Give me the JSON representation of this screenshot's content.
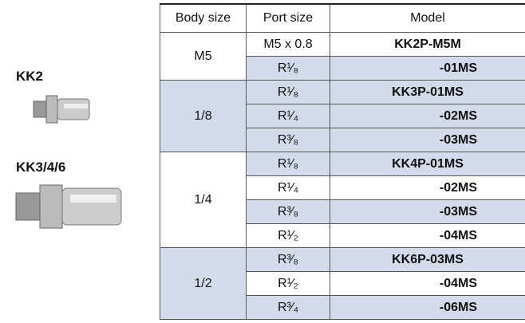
{
  "labels": [
    "KK2",
    "KK3/4/6"
  ],
  "table": {
    "header": [
      "Body size",
      "Port size",
      "Model"
    ],
    "groups": [
      {
        "body": "M5",
        "rows": [
          [
            "M5 x 0.8",
            "KK2P-M5M"
          ],
          [
            "R¹⁄₈",
            "-01MS"
          ]
        ]
      },
      {
        "body": "1/8",
        "rows": [
          [
            "R¹⁄₈",
            "KK3P-01MS"
          ],
          [
            "R¹⁄₄",
            "-02MS"
          ],
          [
            "R³⁄₈",
            "-03MS"
          ]
        ]
      },
      {
        "body": "1/4",
        "rows": [
          [
            "R¹⁄₈",
            "KK4P-01MS"
          ],
          [
            "R¹⁄₄",
            "-02MS"
          ],
          [
            "R³⁄₈",
            "-03MS"
          ],
          [
            "R¹⁄₂",
            "-04MS"
          ]
        ]
      },
      {
        "body": "1/2",
        "rows": [
          [
            "R³⁄₈",
            "KK6P-03MS"
          ],
          [
            "R¹⁄₂",
            "-04MS"
          ],
          [
            "R³⁄₄",
            "-06MS"
          ]
        ]
      }
    ]
  }
}
